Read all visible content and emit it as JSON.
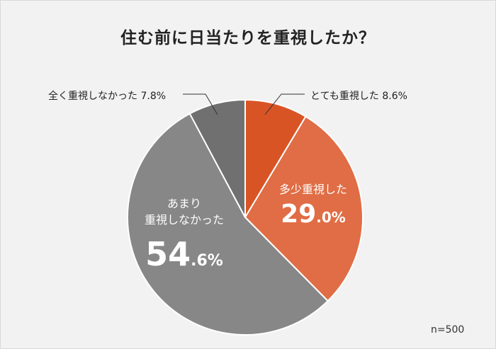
{
  "chart_data": {
    "type": "pie",
    "title": "住む前に日当たりを重視したか？",
    "slices": [
      {
        "label": "とても重視した",
        "value": 8.6,
        "pct_int": "8",
        "pct_dec": ".6%",
        "color": "#d95425"
      },
      {
        "label": "多少重視した",
        "value": 29.0,
        "pct_int": "29",
        "pct_dec": ".0%",
        "color": "#e06d45"
      },
      {
        "label_line1": "あまり",
        "label_line2": "重視しなかった",
        "value": 54.6,
        "pct_int": "54",
        "pct_dec": ".6%",
        "color": "#878787"
      },
      {
        "label": "全く重視しなかった",
        "value": 7.8,
        "pct_int": "7",
        "pct_dec": ".8%",
        "color": "#707070"
      }
    ],
    "note": "n=500"
  }
}
